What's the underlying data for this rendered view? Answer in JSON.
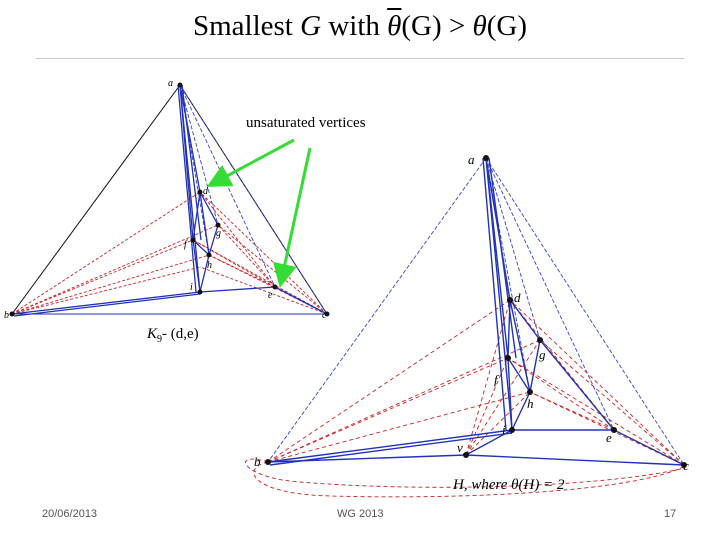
{
  "slide": {
    "title_prefix": "Smallest ",
    "title_g": "G",
    "title_with": " with ",
    "theta_bar": "θ",
    "title_paren1": "(G) > ",
    "theta": "θ",
    "title_paren2": "(G)",
    "annotation": "unsaturated  vertices",
    "k9_label": "K",
    "k9_sub": "9",
    "k9_rest": "- (d,e)",
    "h_caption": "H, where  θ(H) = 2",
    "footer_date": "20/06/2013",
    "footer_conf": "WG 2013",
    "footer_page": "17"
  },
  "graph_left": {
    "vertex_labels": [
      "a",
      "d",
      "g",
      "f",
      "h",
      "i",
      "e",
      "b",
      "c"
    ]
  },
  "graph_right": {
    "vertex_labels": [
      "a",
      "d",
      "g",
      "f",
      "h",
      "i",
      "e",
      "b",
      "v",
      "c"
    ]
  },
  "colors": {
    "solid_blue": "#2233bb",
    "dash_red": "#cc2222",
    "dash_blue": "#3344cc",
    "arrow_green": "#33dd33"
  }
}
